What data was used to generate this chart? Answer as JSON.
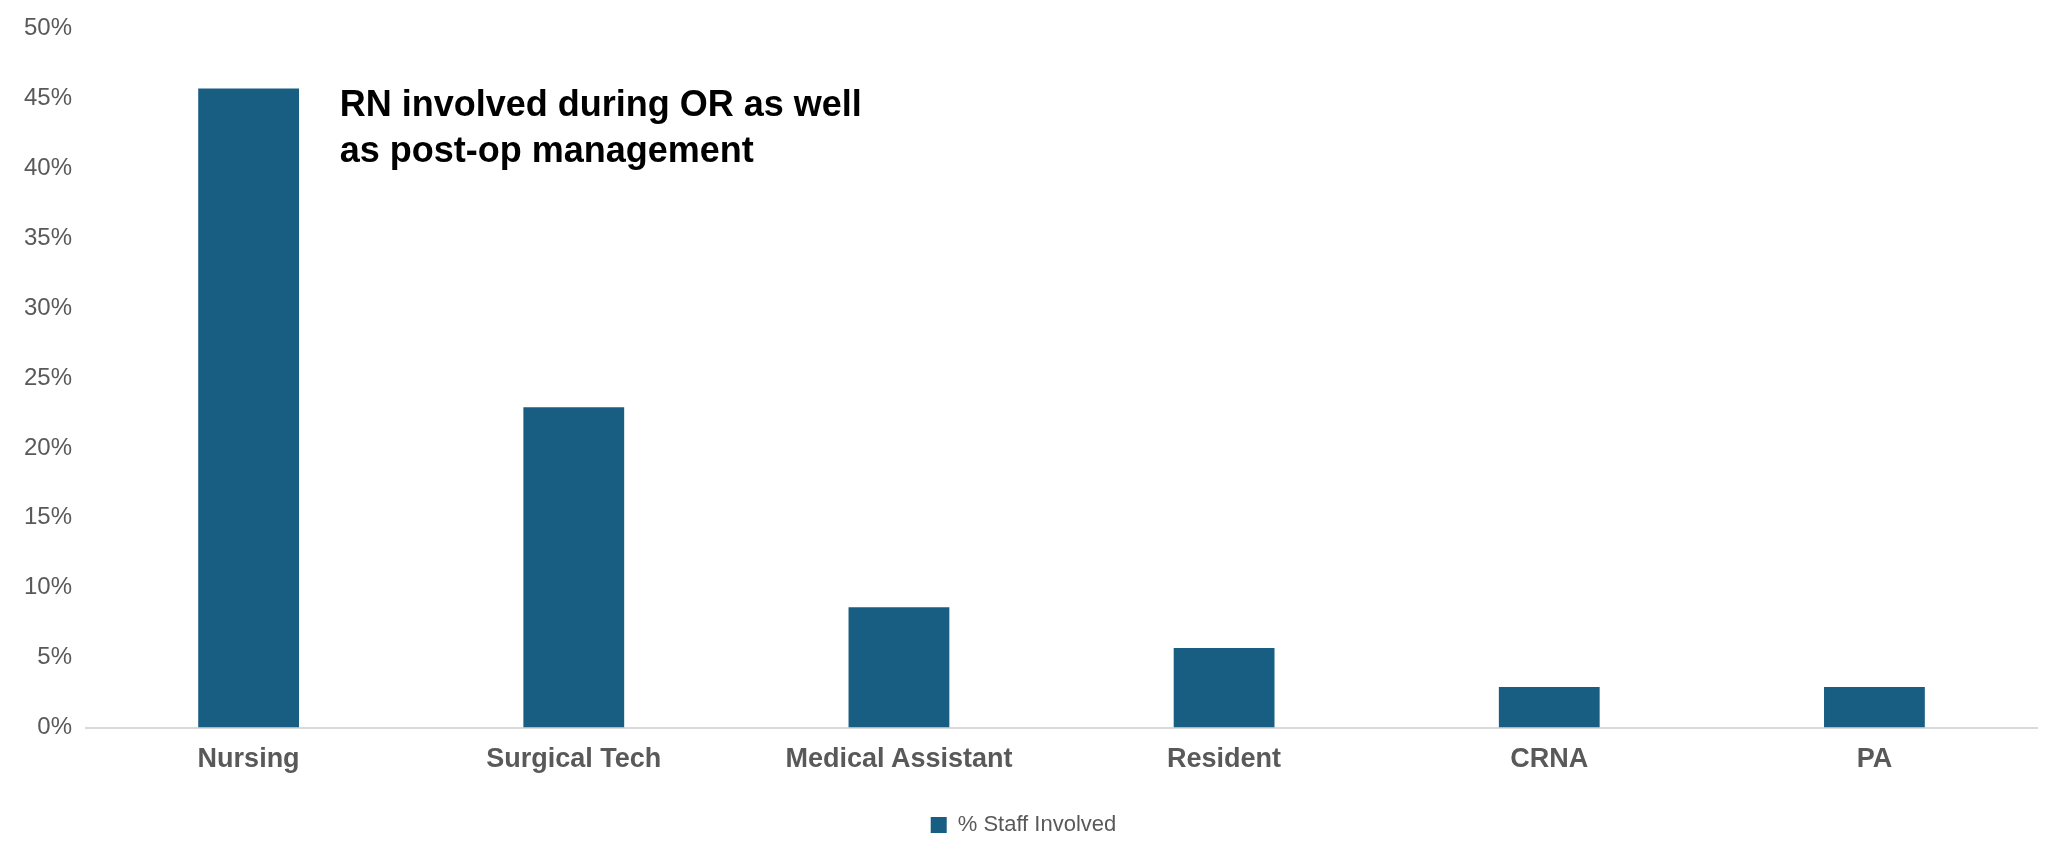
{
  "chart_data": {
    "type": "bar",
    "categories": [
      "Nursing",
      "Surgical Tech",
      "Medical Assistant",
      "Resident",
      "CRNA",
      "PA"
    ],
    "series": [
      {
        "name": "% Staff Involved",
        "color": "#175e82",
        "values": [
          45.7,
          22.9,
          8.6,
          5.7,
          2.9,
          2.9
        ]
      }
    ],
    "ylim": [
      0,
      50
    ],
    "yticks": [
      {
        "value": 0,
        "label": "0%"
      },
      {
        "value": 5,
        "label": "5%"
      },
      {
        "value": 10,
        "label": "10%"
      },
      {
        "value": 15,
        "label": "15%"
      },
      {
        "value": 20,
        "label": "20%"
      },
      {
        "value": 25,
        "label": "25%"
      },
      {
        "value": 30,
        "label": "30%"
      },
      {
        "value": 35,
        "label": "35%"
      },
      {
        "value": 40,
        "label": "40%"
      },
      {
        "value": 45,
        "label": "45%"
      },
      {
        "value": 50,
        "label": "50%"
      }
    ],
    "grid": false,
    "legend": "bottom",
    "annotations": [
      "RN involved during OR as well as post-op management"
    ]
  }
}
